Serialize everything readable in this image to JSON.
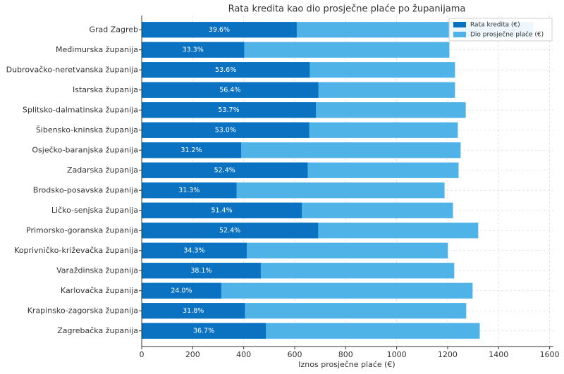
{
  "chart_data": {
    "type": "bar",
    "orientation": "horizontal",
    "overlap": true,
    "title": "Rata kredita kao dio prosječne plaće po županijama",
    "xlabel": "Iznos prosječne plaće (€)",
    "categories": [
      "Grad Zagreb",
      "Međimurska županija",
      "Dubrovačko-neretvanska županija",
      "Istarska županija",
      "Splitsko-dalmatinska županija",
      "Šibensko-kninska županija",
      "Osječko-baranjska županija",
      "Zadarska županija",
      "Brodsko-posavska županija",
      "Ličko-senjska županija",
      "Primorsko-goranska županija",
      "Koprivničko-križevačka županija",
      "Varaždinska županija",
      "Karlovačka županija",
      "Krapinsko-zagorska županija",
      "Zagrebačka županija"
    ],
    "series": [
      {
        "name": "Dio prosječne plaće (€)",
        "color": "#4fb3e8",
        "values": [
          1536,
          1207,
          1229,
          1229,
          1271,
          1240,
          1251,
          1243,
          1188,
          1221,
          1320,
          1201,
          1226,
          1298,
          1273,
          1326
        ]
      },
      {
        "name": "Rata kredita (€)",
        "color": "#0a72c1",
        "values": [
          608,
          402,
          659,
          693,
          683,
          657,
          390,
          651,
          372,
          628,
          692,
          412,
          467,
          312,
          405,
          487
        ],
        "share_labels": [
          "39.6%",
          "33.3%",
          "53.6%",
          "56.4%",
          "53.7%",
          "53.0%",
          "31.2%",
          "52.4%",
          "31.3%",
          "51.4%",
          "52.4%",
          "34.3%",
          "38.1%",
          "24.0%",
          "31.8%",
          "36.7%"
        ]
      }
    ],
    "legend_order": [
      1,
      0
    ],
    "legend": "upper right",
    "xlim": [
      0,
      1615
    ],
    "xticks": [
      0,
      200,
      400,
      600,
      800,
      1000,
      1200,
      1400,
      1600
    ],
    "grid": true
  }
}
